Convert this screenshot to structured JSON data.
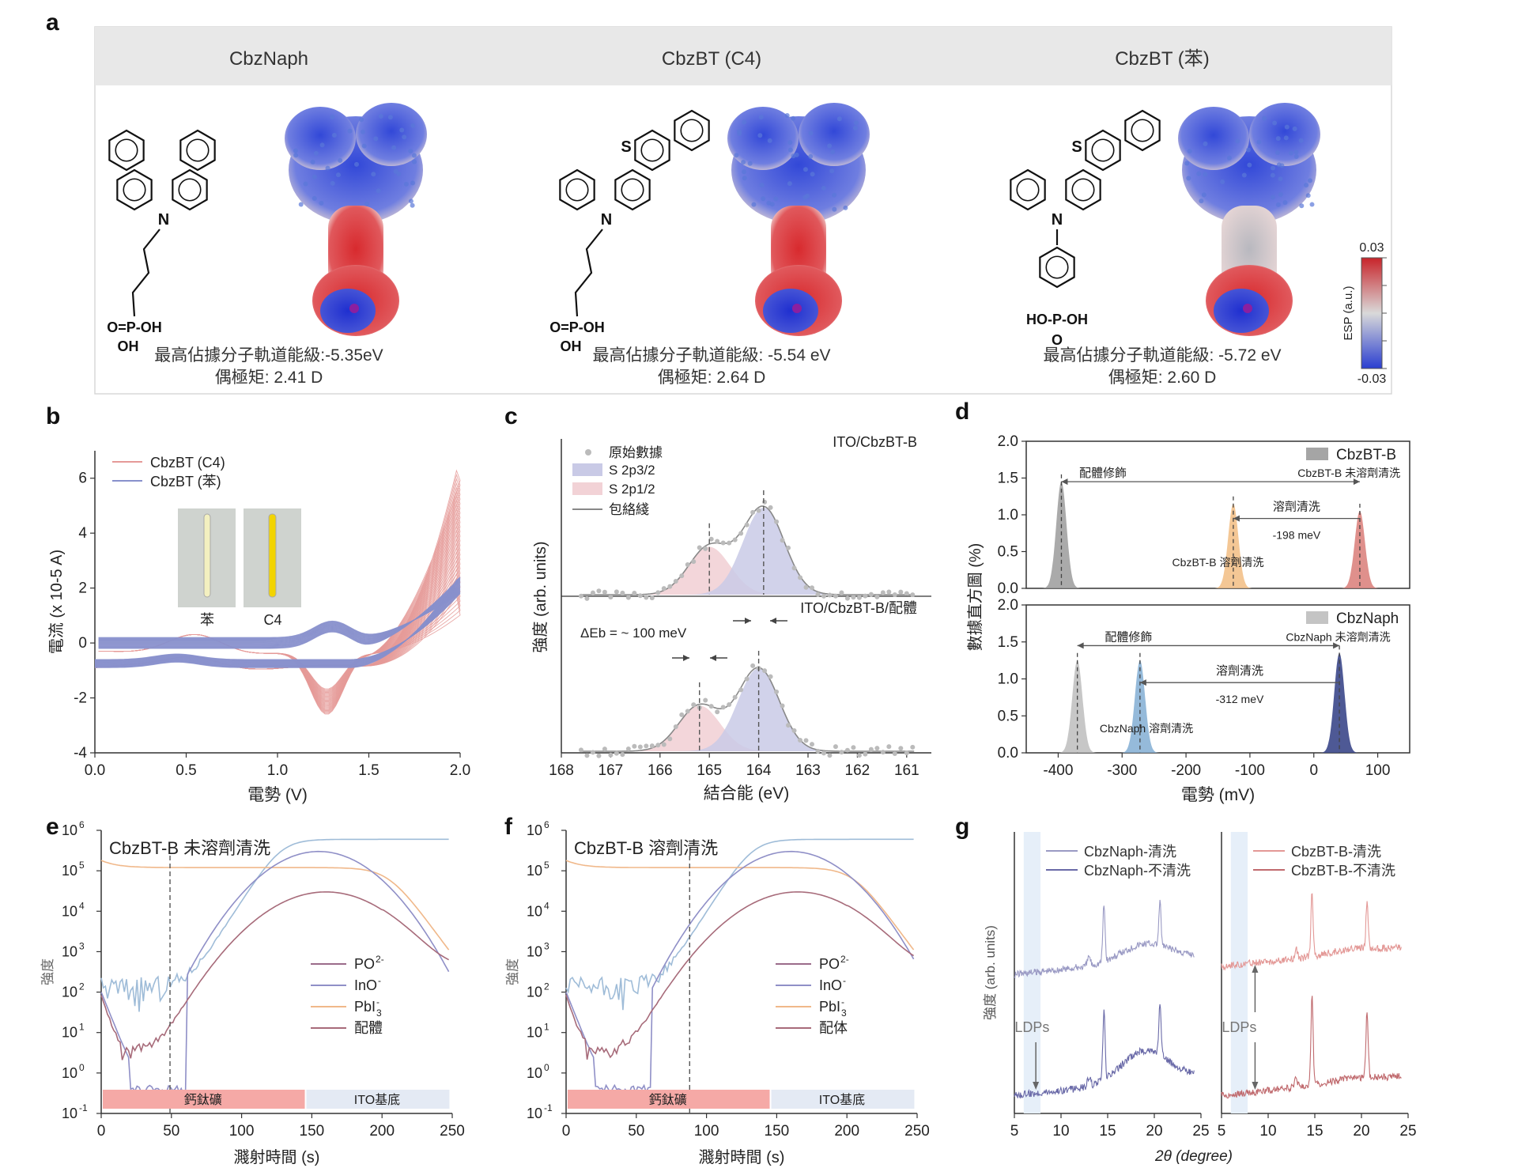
{
  "panel_letters": [
    "a",
    "b",
    "c",
    "d",
    "e",
    "f",
    "g"
  ],
  "panel_a": {
    "columns": [
      {
        "title": "CbzNaph",
        "homo": "最高佔據分子軌道能級:-5.35eV",
        "dipole": "偶極矩: 2.41 D",
        "anchor_left": "O=P-OH",
        "anchor_bottom": "OH"
      },
      {
        "title": "CbzBT (C4)",
        "homo": "最高佔據分子軌道能級: -5.54 eV",
        "dipole": "偶極矩: 2.64 D",
        "anchor_left": "O=P-OH",
        "anchor_bottom": "OH",
        "hetero": "S"
      },
      {
        "title": "CbzBT (苯)",
        "homo": "最高佔據分子軌道能級: -5.72 eV",
        "dipole": "偶極矩: 2.60 D",
        "anchor_left": "HO-P-OH",
        "anchor_bottom": "O",
        "hetero": "S"
      }
    ],
    "n_label": "N",
    "colorbar": {
      "max": "0.03",
      "min": "-0.03",
      "label": "ESP (a.u.)",
      "colors": [
        "#c8242a",
        "#d9d9d9",
        "#2a3ed0"
      ]
    }
  },
  "chart_data": [
    {
      "panel": "b",
      "type": "line",
      "xlabel": "電勢 (V)",
      "ylabel": "電流 (x 10-5 A)",
      "xlim": [
        0.0,
        2.0
      ],
      "ylim": [
        -4,
        7
      ],
      "xticks": [
        "0.0",
        "0.5",
        "1.0",
        "1.5",
        "2.0"
      ],
      "yticks": [
        "-4",
        "-2",
        "0",
        "2",
        "4",
        "6"
      ],
      "series": [
        {
          "name": "CbzBT (C4)",
          "color": "#e59a98",
          "cycles": 60,
          "final_current_at_2V": 6.9,
          "cathodic_peak": [
            1.27,
            -2.7
          ]
        },
        {
          "name": "CbzBT (苯)",
          "color": "#8891cc",
          "cycles": 60,
          "final_current_at_2V": 2.8
        }
      ],
      "inset": {
        "labels": [
          "苯",
          "C4"
        ]
      }
    },
    {
      "panel": "c",
      "type": "line",
      "title_top": "ITO/CbzBT-B",
      "title_bottom": "ITO/CbzBT-B/配體",
      "xlabel": "結合能 (eV)",
      "ylabel": "強度 (arb. units)",
      "xlim": [
        168,
        160.5
      ],
      "xticks": [
        "168",
        "167",
        "166",
        "165",
        "164",
        "163",
        "162",
        "161"
      ],
      "legend": [
        "原始數據",
        "S 2p3/2",
        "S 2p1/2",
        "包絡綫"
      ],
      "top_peaks": {
        "p32": 163.9,
        "p12": 165.0
      },
      "bottom_peaks": {
        "p32": 164.0,
        "p12": 165.2
      },
      "annotation": "ΔEb = ~ 100 meV",
      "colors": {
        "p32": "#c9cae6",
        "p12": "#f2d2d6",
        "raw": "#bbbbbb",
        "envelope": "#888888"
      }
    },
    {
      "panel": "d",
      "type": "histogram",
      "xlabel": "電勢 (mV)",
      "ylabel": "數據直方圖 (%)",
      "xlim": [
        -450,
        150
      ],
      "ylim": [
        0,
        2.0
      ],
      "xticks": [
        "-400",
        "-300",
        "-200",
        "-100",
        "0",
        "100"
      ],
      "yticks": [
        "0.0",
        "0.5",
        "1.0",
        "1.5",
        "2.0"
      ],
      "top": {
        "legend": "CbzBT-B",
        "peaks": [
          {
            "x": -395,
            "h": 1.45,
            "color": "#a5a5a5"
          },
          {
            "x": -126,
            "h": 1.15,
            "color": "#f3c48f"
          },
          {
            "x": 72,
            "h": 1.05,
            "color": "#dd8a86"
          }
        ],
        "labels": {
          "ligand": "配體修飾",
          "unwashed": "CbzBT-B 未溶劑清洗",
          "washed_arrow": "溶劑清洗",
          "shift": "-198 meV",
          "washed": "CbzBT-B 溶劑清洗"
        }
      },
      "bottom": {
        "legend": "CbzNaph",
        "peaks": [
          {
            "x": -370,
            "h": 1.25,
            "color": "#c4c4c4"
          },
          {
            "x": -272,
            "h": 1.25,
            "color": "#8fb6d8"
          },
          {
            "x": 40,
            "h": 1.35,
            "color": "#44508f"
          }
        ],
        "labels": {
          "ligand": "配體修飾",
          "unwashed": "CbzNaph 未溶劑清洗",
          "washed_arrow": "溶劑清洗",
          "shift": "-312 meV",
          "washed": "CbzNaph 溶劑清洗"
        }
      }
    },
    {
      "panel": "e",
      "type": "line",
      "title": "CbzBT-B 未溶劑清洗",
      "xlabel": "濺射時間 (s)",
      "ylabel": "強度",
      "xlim": [
        0,
        250
      ],
      "yscale": "log",
      "ylim": [
        0.1,
        1000000
      ],
      "xticks": [
        "0",
        "50",
        "100",
        "150",
        "200",
        "250"
      ],
      "yticks": [
        {
          "base": "10",
          "exp": "6"
        },
        {
          "base": "10",
          "exp": "5"
        },
        {
          "base": "10",
          "exp": "4"
        },
        {
          "base": "10",
          "exp": "3"
        },
        {
          "base": "10",
          "exp": "2"
        },
        {
          "base": "10",
          "exp": "1"
        },
        {
          "base": "10",
          "exp": "0"
        },
        {
          "base": "10",
          "exp": "-1"
        }
      ],
      "legend": [
        {
          "base": "PO",
          "sup": "2-",
          "sub": "",
          "color": "#9b6b8a"
        },
        {
          "base": "InO",
          "sup": "-",
          "sub": "",
          "color": "#8f8fc7"
        },
        {
          "base": "PbI",
          "sup": "-",
          "sub": "3",
          "color": "#f0b88a"
        },
        {
          "base": "配體",
          "sup": "",
          "sub": "",
          "color": "#a76b7a"
        }
      ],
      "dash_x": 49,
      "bars": [
        {
          "label": "鈣鈦礦",
          "from": 0,
          "to": 145,
          "color": "#f5a9a6"
        },
        {
          "label": "ITO基底",
          "from": 145,
          "to": 248,
          "color": "#e4eaf4"
        }
      ]
    },
    {
      "panel": "f",
      "type": "line",
      "title": "CbzBT-B 溶劑清洗",
      "xlabel": "濺射時間 (s)",
      "ylabel": "強度",
      "xlim": [
        0,
        250
      ],
      "yscale": "log",
      "ylim": [
        0.1,
        1000000
      ],
      "xticks": [
        "0",
        "50",
        "100",
        "150",
        "200",
        "250"
      ],
      "yticks": [
        {
          "base": "10",
          "exp": "6"
        },
        {
          "base": "10",
          "exp": "5"
        },
        {
          "base": "10",
          "exp": "4"
        },
        {
          "base": "10",
          "exp": "3"
        },
        {
          "base": "10",
          "exp": "2"
        },
        {
          "base": "10",
          "exp": "1"
        },
        {
          "base": "10",
          "exp": "0"
        },
        {
          "base": "10",
          "exp": "-1"
        }
      ],
      "legend": [
        {
          "base": "PO",
          "sup": "2-",
          "sub": "",
          "color": "#9b6b8a"
        },
        {
          "base": "InO",
          "sup": "-",
          "sub": "",
          "color": "#8f8fc7"
        },
        {
          "base": "PbI",
          "sup": "-",
          "sub": "3",
          "color": "#f0b88a"
        },
        {
          "base": "配体",
          "sup": "",
          "sub": "",
          "color": "#a76b7a"
        }
      ],
      "dash_x": 88,
      "bars": [
        {
          "label": "鈣鈦礦",
          "from": 0,
          "to": 145,
          "color": "#f5a9a6"
        },
        {
          "label": "ITO基底",
          "from": 145,
          "to": 248,
          "color": "#e4eaf4"
        }
      ]
    },
    {
      "panel": "g",
      "type": "line",
      "xlabel": "2θ (degree)",
      "ylabel": "強度 (arb. units)",
      "xlim": [
        5,
        25
      ],
      "xticks": [
        "5",
        "10",
        "15",
        "20",
        "25"
      ],
      "left": {
        "legend": [
          "CbzNaph-清洗",
          "CbzNaph-不清洗"
        ],
        "colors": [
          "#9a9ac4",
          "#6a6aa8"
        ],
        "peaks": [
          14.6,
          20.6
        ]
      },
      "right": {
        "legend": [
          "CbzBT-B-清洗",
          "CbzBT-B-不清洗"
        ],
        "colors": [
          "#e39896",
          "#c06a6e"
        ],
        "peaks": [
          14.7,
          20.6
        ]
      },
      "annotation": "LDPs",
      "ldp_band": [
        6.0,
        7.8
      ]
    }
  ]
}
